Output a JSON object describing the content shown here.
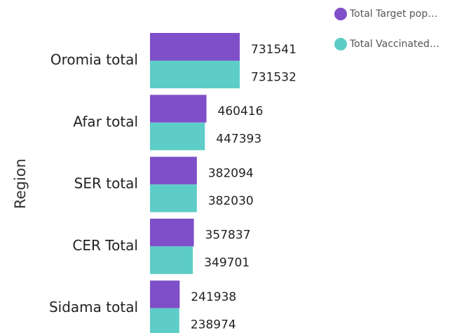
{
  "chart_data": {
    "type": "hbar",
    "y_axis_label": "Region",
    "categories": [
      "Oromia total",
      "Afar total",
      "SER total",
      "CER Total",
      "Sidama total"
    ],
    "series": [
      {
        "name": "Total Target pop…",
        "color": "#7f4fc9",
        "values": [
          731541,
          460416,
          382094,
          357837,
          241938
        ]
      },
      {
        "name": "Total Vaccinated…",
        "color": "#5ecdc8",
        "values": [
          731532,
          447393,
          382030,
          349701,
          238974
        ]
      }
    ],
    "legend": "top-right"
  }
}
